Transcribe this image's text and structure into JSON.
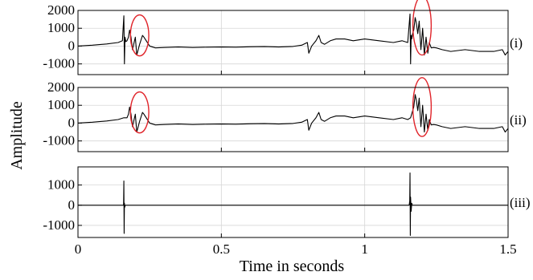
{
  "chart_data": {
    "type": "line",
    "xlabel": "Time in seconds",
    "ylabel": "Amplitude",
    "xlim": [
      0,
      1.5
    ],
    "xticks": [
      0,
      0.5,
      1,
      1.5
    ],
    "xtick_labels": [
      "0",
      "0.5",
      "1",
      "1.5"
    ],
    "grid": true,
    "panels": [
      {
        "tag": "(i)",
        "ylim": [
          -1600,
          2000
        ],
        "yticks": [
          2000,
          1000,
          0,
          -1000
        ],
        "ytick_labels": [
          "2000",
          "1000",
          "0",
          "-1000"
        ],
        "highlight_ellipses": [
          {
            "cx": 0.215,
            "cy": 600,
            "rx": 0.032,
            "ry": 1150
          },
          {
            "cx": 1.2,
            "cy": 1150,
            "rx": 0.032,
            "ry": 1650
          }
        ],
        "series": [
          {
            "x": [
              0,
              0.05,
              0.1,
              0.14,
              0.155,
              0.16,
              0.162,
              0.164,
              0.167,
              0.171,
              0.176,
              0.18,
              0.185,
              0.19,
              0.2,
              0.205,
              0.215,
              0.225,
              0.23,
              0.25,
              0.27,
              0.3,
              0.35,
              0.4,
              0.45,
              0.5,
              0.55,
              0.6,
              0.65,
              0.7,
              0.75,
              0.78,
              0.8,
              0.805,
              0.815,
              0.83,
              0.84,
              0.848,
              0.86,
              0.88,
              0.9,
              0.93,
              0.96,
              1.0,
              1.05,
              1.1,
              1.13,
              1.15,
              1.158,
              1.16,
              1.162,
              1.164,
              1.167,
              1.171,
              1.176,
              1.18,
              1.185,
              1.19,
              1.196,
              1.202,
              1.208,
              1.214,
              1.22,
              1.225,
              1.232,
              1.24,
              1.25,
              1.27,
              1.3,
              1.35,
              1.4,
              1.45,
              1.48,
              1.49,
              1.5
            ],
            "y": [
              0,
              50,
              120,
              200,
              300,
              1700,
              -1000,
              500,
              250,
              300,
              500,
              900,
              500,
              -200,
              500,
              -500,
              100,
              600,
              500,
              0,
              -100,
              -80,
              -50,
              -80,
              -60,
              -50,
              -60,
              -40,
              -30,
              -50,
              -20,
              50,
              200,
              -400,
              0,
              300,
              600,
              200,
              100,
              300,
              400,
              400,
              300,
              400,
              300,
              200,
              300,
              200,
              1800,
              -1000,
              600,
              400,
              700,
              900,
              1600,
              1300,
              700,
              1400,
              -200,
              1000,
              -500,
              500,
              -400,
              200,
              -100,
              -80,
              -100,
              -200,
              -300,
              -200,
              -300,
              -300,
              -200,
              -500,
              -300
            ]
          }
        ]
      },
      {
        "tag": "(ii)",
        "ylim": [
          -1600,
          2000
        ],
        "yticks": [
          2000,
          1000,
          0,
          -1000
        ],
        "ytick_labels": [
          "2000",
          "1000",
          "0",
          "-1000"
        ],
        "highlight_ellipses": [
          {
            "cx": 0.215,
            "cy": 600,
            "rx": 0.032,
            "ry": 1150
          },
          {
            "cx": 1.2,
            "cy": 900,
            "rx": 0.032,
            "ry": 1650
          }
        ],
        "series": [
          {
            "x": [
              0,
              0.05,
              0.1,
              0.14,
              0.16,
              0.171,
              0.176,
              0.18,
              0.185,
              0.19,
              0.2,
              0.205,
              0.215,
              0.225,
              0.23,
              0.25,
              0.27,
              0.3,
              0.35,
              0.4,
              0.45,
              0.5,
              0.55,
              0.6,
              0.65,
              0.7,
              0.75,
              0.78,
              0.8,
              0.805,
              0.815,
              0.83,
              0.84,
              0.848,
              0.86,
              0.88,
              0.9,
              0.93,
              0.96,
              1.0,
              1.05,
              1.1,
              1.13,
              1.15,
              1.16,
              1.171,
              1.176,
              1.18,
              1.185,
              1.19,
              1.196,
              1.202,
              1.208,
              1.214,
              1.22,
              1.225,
              1.232,
              1.24,
              1.25,
              1.27,
              1.3,
              1.35,
              1.4,
              1.45,
              1.48,
              1.49,
              1.5
            ],
            "y": [
              0,
              50,
              120,
              200,
              300,
              300,
              500,
              900,
              500,
              -200,
              500,
              -500,
              100,
              600,
              500,
              0,
              -100,
              -80,
              -50,
              -80,
              -60,
              -50,
              -60,
              -40,
              -30,
              -50,
              -20,
              50,
              200,
              -400,
              0,
              300,
              600,
              200,
              100,
              300,
              400,
              400,
              300,
              400,
              300,
              200,
              300,
              200,
              300,
              900,
              1600,
              1300,
              700,
              1400,
              -200,
              1000,
              -500,
              500,
              -400,
              200,
              -100,
              -80,
              -100,
              -200,
              -300,
              -200,
              -300,
              -300,
              -200,
              -500,
              -300
            ]
          }
        ]
      },
      {
        "tag": "(iii)",
        "ylim": [
          -1600,
          1900
        ],
        "yticks": [
          1000,
          0,
          -1000
        ],
        "ytick_labels": [
          "1000",
          "0",
          "-1000"
        ],
        "highlight_ellipses": [],
        "series": [
          {
            "x": [
              0,
              0.159,
              0.16,
              0.161,
              0.162,
              0.163,
              0.165,
              1.155,
              1.157,
              1.158,
              1.159,
              1.16,
              1.162,
              1.164,
              1.166,
              1.5
            ],
            "y": [
              0,
              0,
              1200,
              -1400,
              100,
              -100,
              0,
              0,
              200,
              1600,
              -1500,
              400,
              -300,
              100,
              0,
              0
            ]
          }
        ]
      }
    ]
  }
}
